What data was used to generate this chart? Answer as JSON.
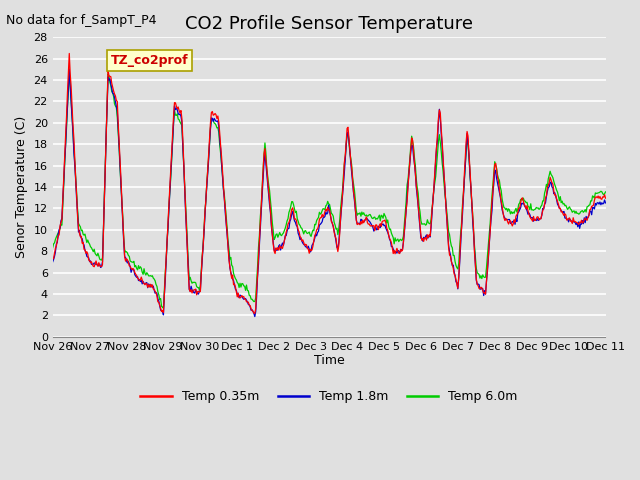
{
  "title": "CO2 Profile Sensor Temperature",
  "no_data_label": "No data for f_SampT_P4",
  "ylabel": "Senor Temperature (C)",
  "xlabel": "Time",
  "box_label": "TZ_co2prof",
  "ylim": [
    0,
    28
  ],
  "yticks": [
    0,
    2,
    4,
    6,
    8,
    10,
    12,
    14,
    16,
    18,
    20,
    22,
    24,
    26,
    28
  ],
  "legend": [
    "Temp 0.35m",
    "Temp 1.8m",
    "Temp 6.0m"
  ],
  "legend_colors": [
    "#ff0000",
    "#0000cd",
    "#00cc00"
  ],
  "background_color": "#e0e0e0",
  "plot_bg_color": "#e0e0e0",
  "grid_color": "#ffffff",
  "num_points": 600,
  "x_tick_labels": [
    "Nov 26",
    "Nov 27",
    "Nov 28",
    "Nov 29",
    "Nov 30",
    "Dec 1",
    "Dec 2",
    "Dec 3",
    "Dec 4",
    "Dec 5",
    "Dec 6",
    "Dec 7",
    "Dec 8",
    "Dec 9",
    "Dec 10",
    "Dec 11"
  ],
  "title_fontsize": 13,
  "label_fontsize": 9,
  "tick_fontsize": 8,
  "key_x": [
    0.0,
    0.25,
    0.45,
    0.7,
    1.0,
    1.35,
    1.5,
    1.75,
    1.95,
    2.3,
    2.5,
    2.75,
    3.0,
    3.3,
    3.5,
    3.7,
    4.0,
    4.3,
    4.5,
    4.8,
    5.0,
    5.25,
    5.5,
    5.75,
    6.0,
    6.25,
    6.5,
    6.75,
    7.0,
    7.25,
    7.5,
    7.75,
    8.0,
    8.25,
    8.5,
    8.75,
    9.0,
    9.25,
    9.5,
    9.75,
    10.0,
    10.25,
    10.5,
    10.75,
    11.0,
    11.25,
    11.5,
    11.75,
    12.0,
    12.25,
    12.5,
    12.75,
    13.0,
    13.25,
    13.5,
    13.75,
    14.0,
    14.25,
    14.5,
    14.75,
    15.0
  ],
  "key_r": [
    7.0,
    11.0,
    26.5,
    10.0,
    7.0,
    6.5,
    25.0,
    22.0,
    7.5,
    5.5,
    5.0,
    4.5,
    2.0,
    22.0,
    21.0,
    4.5,
    4.0,
    21.0,
    20.5,
    6.5,
    4.0,
    3.5,
    2.0,
    18.0,
    8.0,
    8.5,
    12.0,
    9.0,
    8.0,
    11.0,
    12.0,
    8.0,
    20.0,
    10.5,
    11.0,
    10.0,
    11.0,
    8.0,
    8.0,
    19.0,
    9.0,
    9.5,
    22.0,
    8.0,
    4.5,
    20.0,
    5.0,
    4.0,
    16.5,
    11.0,
    10.5,
    13.0,
    11.0,
    11.0,
    15.0,
    12.0,
    11.0,
    10.5,
    11.0,
    13.0,
    13.0
  ],
  "key_b": [
    7.0,
    11.0,
    25.0,
    10.0,
    7.0,
    6.5,
    24.5,
    21.5,
    7.5,
    5.5,
    5.0,
    4.5,
    2.0,
    21.5,
    20.5,
    4.5,
    4.0,
    20.5,
    20.0,
    6.5,
    4.0,
    3.5,
    1.8,
    17.5,
    8.0,
    8.5,
    11.5,
    9.0,
    8.0,
    10.5,
    12.0,
    8.0,
    19.5,
    10.5,
    11.0,
    10.0,
    10.5,
    8.0,
    8.0,
    18.5,
    9.0,
    9.5,
    21.5,
    8.0,
    4.5,
    19.5,
    5.0,
    4.0,
    16.0,
    11.0,
    10.5,
    12.5,
    11.0,
    11.0,
    14.5,
    12.0,
    11.0,
    10.5,
    11.0,
    12.5,
    12.5
  ],
  "key_g": [
    8.5,
    10.5,
    25.0,
    10.5,
    8.5,
    7.0,
    24.5,
    21.0,
    8.0,
    6.5,
    6.0,
    5.5,
    2.5,
    21.0,
    20.0,
    5.5,
    4.5,
    20.5,
    19.5,
    7.5,
    5.0,
    4.5,
    3.0,
    18.0,
    9.5,
    9.5,
    12.5,
    10.0,
    9.5,
    11.5,
    12.5,
    9.5,
    19.5,
    11.5,
    11.5,
    11.0,
    11.5,
    9.0,
    9.0,
    19.0,
    10.5,
    10.5,
    19.0,
    9.5,
    6.0,
    19.0,
    6.0,
    5.5,
    16.5,
    12.0,
    11.5,
    13.0,
    12.0,
    12.0,
    15.5,
    13.0,
    12.0,
    11.5,
    12.0,
    13.5,
    13.5
  ]
}
